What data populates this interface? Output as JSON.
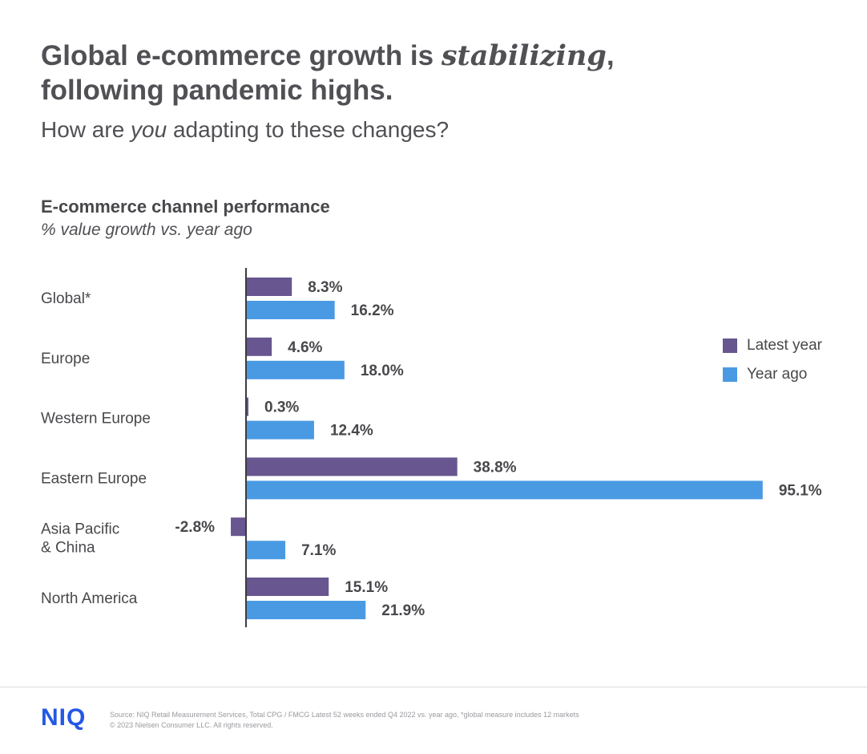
{
  "header": {
    "headline_part1": "Global e-commerce growth is ",
    "headline_italic": "stabilizing",
    "headline_part2": ",",
    "headline_line2": "following pandemic highs.",
    "subhead_part1": "How are ",
    "subhead_italic": "you",
    "subhead_part2": " adapting to these changes?"
  },
  "chart_data": {
    "type": "bar",
    "orientation": "horizontal",
    "title": "E-commerce channel performance",
    "subtitle": "% value growth vs. year ago",
    "categories": [
      [
        "Global*"
      ],
      [
        "Europe"
      ],
      [
        "Western Europe"
      ],
      [
        "Eastern Europe"
      ],
      [
        "Asia Pacific",
        "& China"
      ],
      [
        "North America"
      ]
    ],
    "series": [
      {
        "name": "Latest year",
        "color": "#67568f",
        "values": [
          8.3,
          4.6,
          0.3,
          38.8,
          -2.8,
          15.1
        ],
        "labels": [
          "8.3%",
          "4.6%",
          "0.3%",
          "38.8%",
          "-2.8%",
          "15.1%"
        ]
      },
      {
        "name": "Year ago",
        "color": "#4a9ae3",
        "values": [
          16.2,
          18.0,
          12.4,
          95.1,
          7.1,
          21.9
        ],
        "labels": [
          "16.2%",
          "18.0%",
          "12.4%",
          "95.1%",
          "7.1%",
          "21.9%"
        ]
      }
    ],
    "legend_position": "right",
    "grid": false
  },
  "footer": {
    "logo": "NIQ",
    "source": "Source: NIQ Retail Measurement Services, Total CPG / FMCG Latest 52 weeks ended Q4 2022 vs. year ago, *global measure includes 12 markets",
    "copyright": "© 2023 Nielsen Consumer LLC. All rights reserved."
  }
}
